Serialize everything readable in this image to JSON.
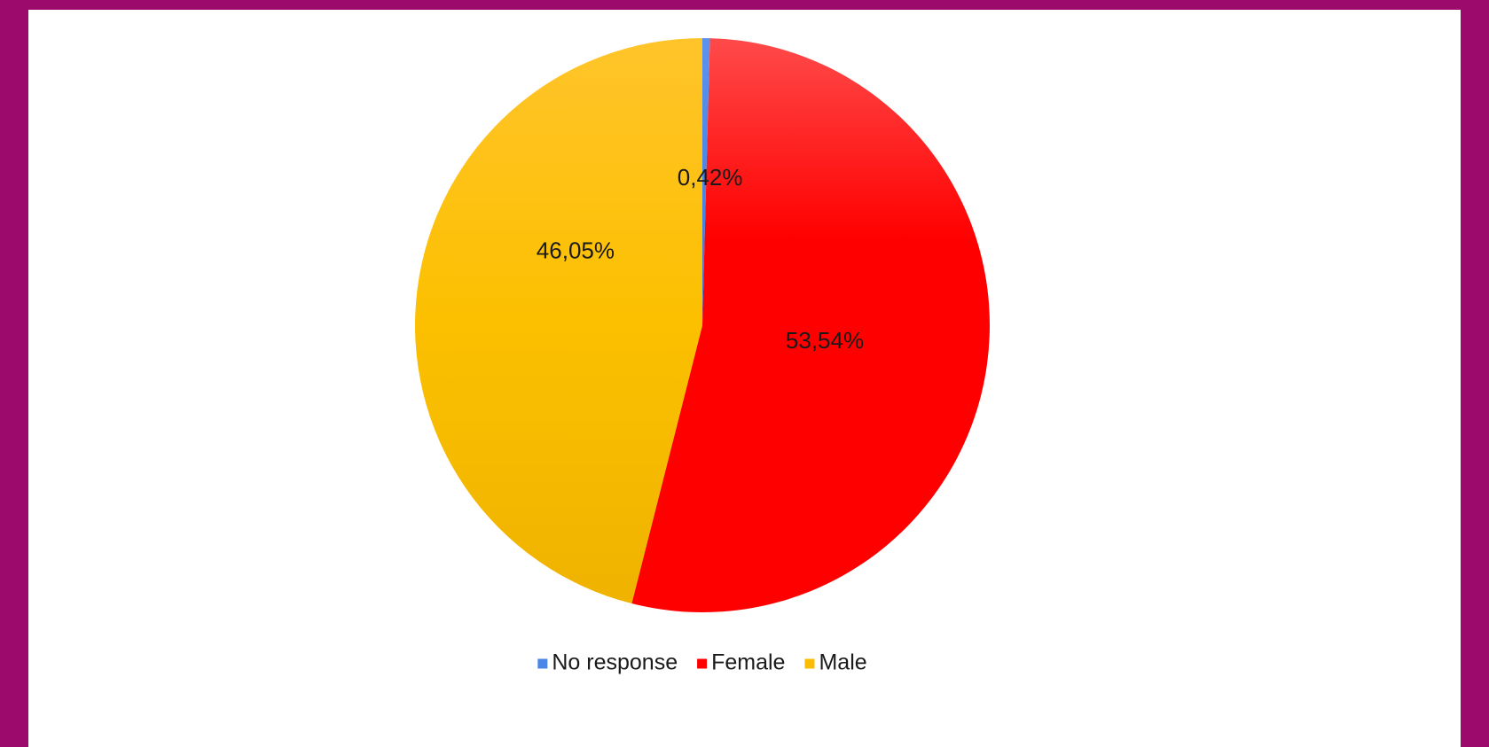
{
  "chart_data": {
    "type": "pie",
    "title": "",
    "start_angle_deg": 0,
    "direction": "clockwise",
    "legend_position": "bottom",
    "slices": [
      {
        "label": "No response",
        "value": 0.42,
        "display": "0,42%",
        "color": "#4a86e8"
      },
      {
        "label": "Female",
        "value": 53.54,
        "display": "53,54%",
        "color": "#ff0000"
      },
      {
        "label": "Male",
        "value": 46.05,
        "display": "46,05%",
        "color": "#fbbc04"
      }
    ]
  }
}
